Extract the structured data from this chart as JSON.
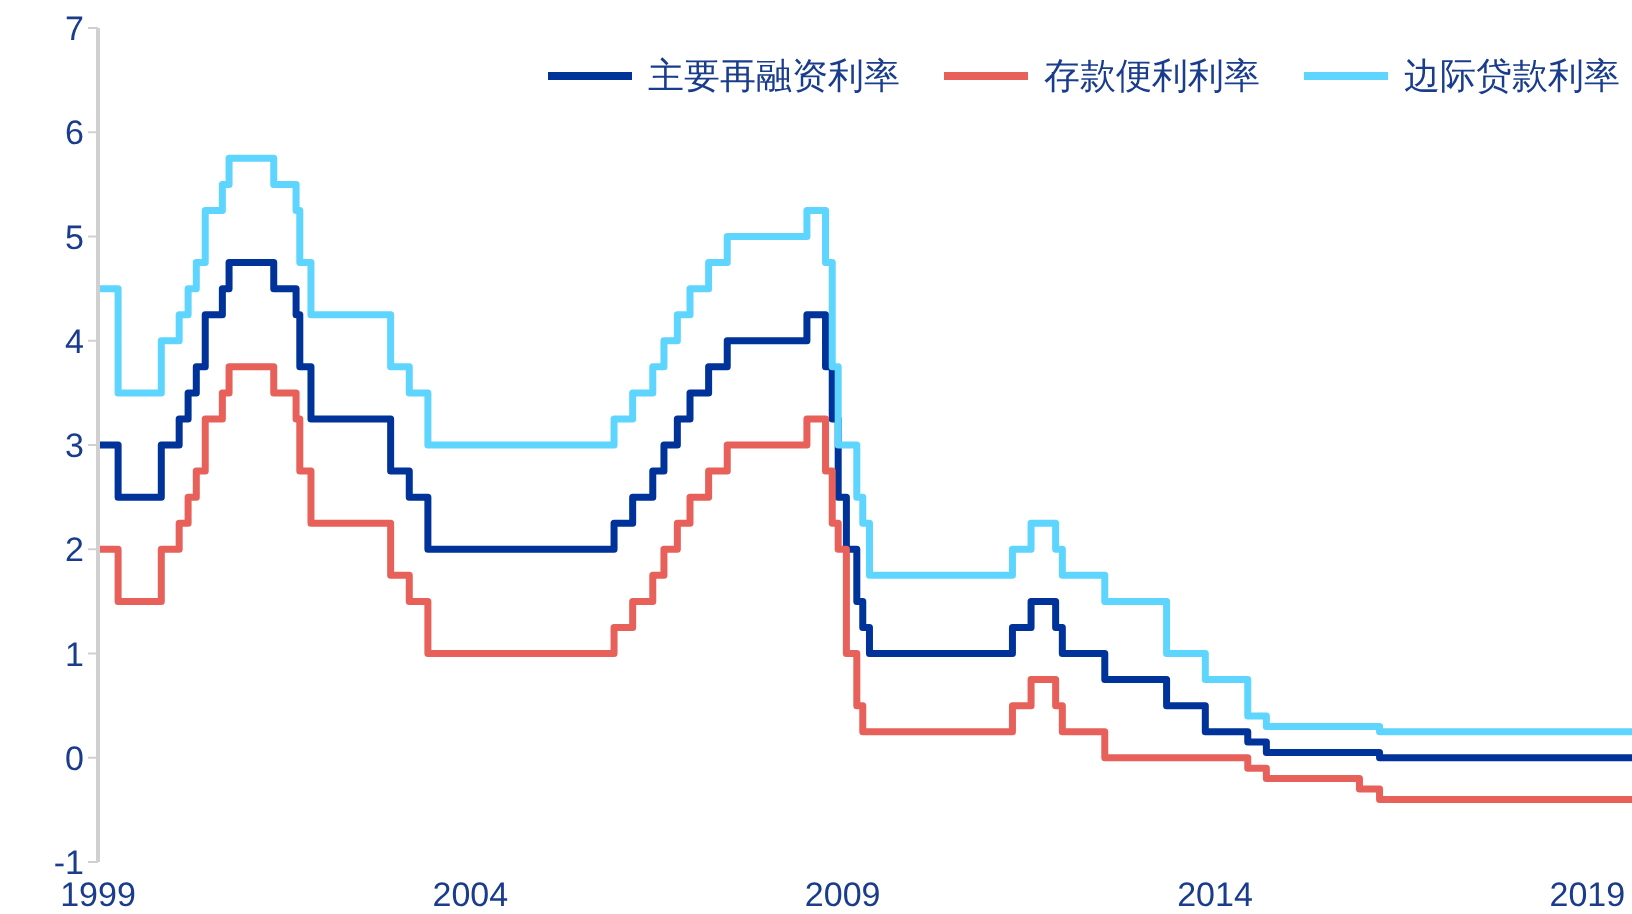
{
  "chart_data": {
    "type": "step",
    "xlim": [
      1999,
      2019.6
    ],
    "xticks": [
      1999,
      2004,
      2009,
      2014,
      2019
    ],
    "ylim": [
      -1,
      7
    ],
    "yticks": [
      -1,
      0,
      1,
      2,
      3,
      4,
      5,
      6,
      7
    ],
    "legend": "top right",
    "marker": "none",
    "line_style": "solid",
    "series": [
      {
        "name": "主要再融资利率",
        "color": "#003399",
        "x": [
          1999.0,
          1999.27,
          1999.85,
          2000.09,
          2000.21,
          2000.32,
          2000.44,
          2000.67,
          2000.76,
          2001.36,
          2001.66,
          2001.71,
          2001.86,
          2002.93,
          2003.18,
          2003.43,
          2005.93,
          2006.18,
          2006.45,
          2006.6,
          2006.78,
          2006.95,
          2007.2,
          2007.45,
          2008.52,
          2008.77,
          2008.86,
          2008.94,
          2009.05,
          2009.19,
          2009.27,
          2009.36,
          2011.28,
          2011.53,
          2011.86,
          2011.95,
          2012.52,
          2013.35,
          2013.87,
          2014.44,
          2014.69,
          2016.21,
          2019.6
        ],
        "values": [
          3,
          2.5,
          3,
          3.25,
          3.5,
          3.75,
          4.25,
          4.5,
          4.75,
          4.5,
          4.25,
          3.75,
          3.25,
          2.75,
          2.5,
          2,
          2.25,
          2.5,
          2.75,
          3,
          3.25,
          3.5,
          3.75,
          4,
          4.25,
          3.75,
          3.25,
          2.5,
          2,
          1.5,
          1.25,
          1,
          1.25,
          1.5,
          1.25,
          1,
          0.75,
          0.5,
          0.25,
          0.15,
          0.05,
          0,
          0
        ]
      },
      {
        "name": "存款便利利率",
        "color": "#e8605a",
        "x": [
          1999.0,
          1999.27,
          1999.85,
          2000.09,
          2000.21,
          2000.32,
          2000.44,
          2000.67,
          2000.76,
          2001.36,
          2001.66,
          2001.71,
          2001.86,
          2002.93,
          2003.18,
          2003.43,
          2005.93,
          2006.18,
          2006.45,
          2006.6,
          2006.78,
          2006.95,
          2007.2,
          2007.45,
          2008.52,
          2008.77,
          2008.86,
          2008.94,
          2009.05,
          2009.19,
          2009.27,
          2011.28,
          2011.53,
          2011.86,
          2011.95,
          2012.52,
          2014.44,
          2014.69,
          2015.94,
          2016.21,
          2019.6
        ],
        "values": [
          2,
          1.5,
          2,
          2.25,
          2.5,
          2.75,
          3.25,
          3.5,
          3.75,
          3.5,
          3.25,
          2.75,
          2.25,
          1.75,
          1.5,
          1,
          1.25,
          1.5,
          1.75,
          2,
          2.25,
          2.5,
          2.75,
          3,
          3.25,
          2.75,
          2.25,
          2,
          1,
          0.5,
          0.25,
          0.5,
          0.75,
          0.5,
          0.25,
          0,
          -0.1,
          -0.2,
          -0.3,
          -0.4,
          -0.4
        ]
      },
      {
        "name": "边际贷款利率",
        "color": "#5dd5ff",
        "x": [
          1999.0,
          1999.27,
          1999.85,
          2000.09,
          2000.21,
          2000.32,
          2000.44,
          2000.67,
          2000.76,
          2001.36,
          2001.66,
          2001.71,
          2001.86,
          2002.93,
          2003.18,
          2003.43,
          2005.93,
          2006.18,
          2006.45,
          2006.6,
          2006.78,
          2006.95,
          2007.2,
          2007.45,
          2008.52,
          2008.77,
          2008.86,
          2008.94,
          2009.19,
          2009.27,
          2009.36,
          2011.28,
          2011.53,
          2011.86,
          2011.95,
          2012.52,
          2013.35,
          2013.87,
          2014.44,
          2014.69,
          2016.21,
          2019.6
        ],
        "values": [
          4.5,
          3.5,
          4,
          4.25,
          4.5,
          4.75,
          5.25,
          5.5,
          5.75,
          5.5,
          5.25,
          4.75,
          4.25,
          3.75,
          3.5,
          3,
          3.25,
          3.5,
          3.75,
          4,
          4.25,
          4.5,
          4.75,
          5,
          5.25,
          4.75,
          3.75,
          3,
          2.5,
          2.25,
          1.75,
          2,
          2.25,
          2,
          1.75,
          1.5,
          1,
          0.75,
          0.4,
          0.3,
          0.25,
          0.25
        ]
      }
    ]
  }
}
